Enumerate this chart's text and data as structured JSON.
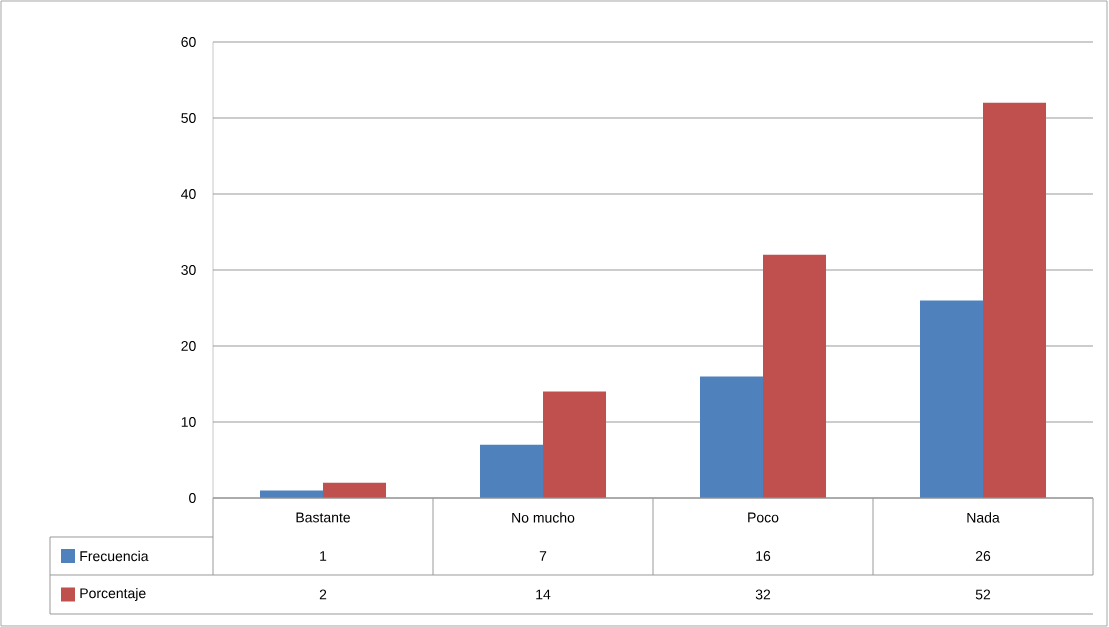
{
  "chart_data": {
    "type": "bar",
    "categories": [
      "Bastante",
      "No mucho",
      "Poco",
      "Nada"
    ],
    "series": [
      {
        "name": "Frecuencia",
        "color": "#4f81bd",
        "values": [
          1,
          7,
          16,
          26
        ]
      },
      {
        "name": "Porcentaje",
        "color": "#c0504d",
        "values": [
          2,
          14,
          32,
          52
        ]
      }
    ],
    "ylim": [
      0,
      60
    ],
    "yticks": [
      0,
      10,
      20,
      30,
      40,
      50,
      60
    ],
    "grid": "y",
    "legend": "bottom",
    "data_labels": true
  }
}
